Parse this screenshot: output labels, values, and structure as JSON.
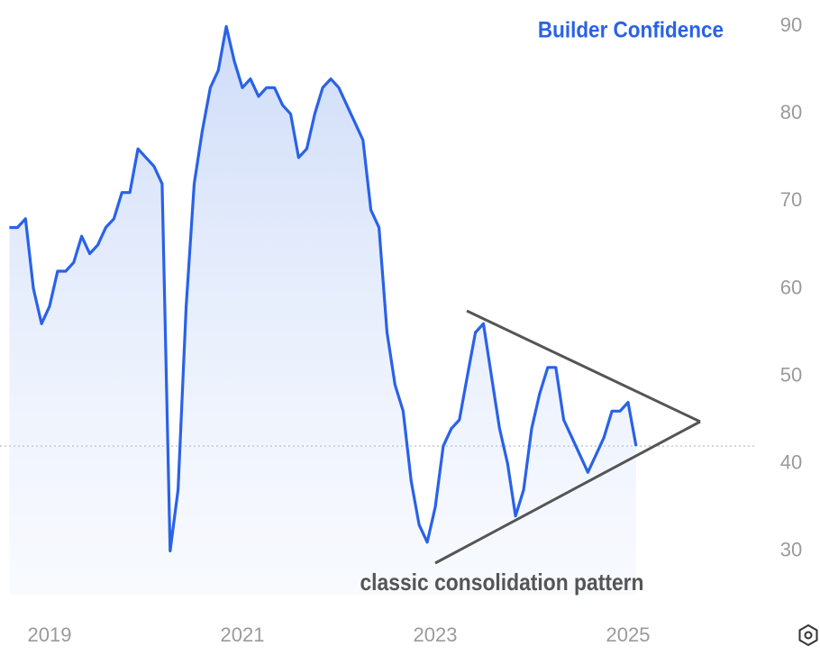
{
  "chart_data": {
    "type": "area",
    "x": [
      2018.583,
      2018.667,
      2018.75,
      2018.833,
      2018.917,
      2019,
      2019.083,
      2019.167,
      2019.25,
      2019.333,
      2019.417,
      2019.5,
      2019.583,
      2019.667,
      2019.75,
      2019.833,
      2019.917,
      2020,
      2020.083,
      2020.167,
      2020.25,
      2020.333,
      2020.417,
      2020.5,
      2020.583,
      2020.667,
      2020.75,
      2020.833,
      2020.917,
      2021,
      2021.083,
      2021.167,
      2021.25,
      2021.333,
      2021.417,
      2021.5,
      2021.583,
      2021.667,
      2021.75,
      2021.833,
      2021.917,
      2022,
      2022.083,
      2022.167,
      2022.25,
      2022.333,
      2022.417,
      2022.5,
      2022.583,
      2022.667,
      2022.75,
      2022.833,
      2022.917,
      2023,
      2023.083,
      2023.167,
      2023.25,
      2023.333,
      2023.417,
      2023.5,
      2023.583,
      2023.667,
      2023.75,
      2023.833,
      2023.917,
      2024,
      2024.083,
      2024.167,
      2024.25,
      2024.333,
      2024.417,
      2024.5,
      2024.583,
      2024.667,
      2024.75,
      2024.833,
      2024.917,
      2025,
      2025.083
    ],
    "series": [
      {
        "name": "Builder Confidence",
        "color": "#2962e8",
        "values": [
          67,
          67,
          68,
          60,
          56,
          58,
          62,
          62,
          63,
          66,
          64,
          65,
          67,
          68,
          71,
          71,
          76,
          75,
          74,
          72,
          30,
          37,
          58,
          72,
          78,
          83,
          85,
          90,
          86,
          83,
          84,
          82,
          83,
          83,
          81,
          80,
          75,
          76,
          80,
          83,
          84,
          83,
          81,
          79,
          77,
          69,
          67,
          55,
          49,
          46,
          38,
          33,
          31,
          35,
          42,
          44,
          45,
          50,
          55,
          56,
          50,
          44,
          40,
          34,
          37,
          44,
          48,
          51,
          51,
          45,
          43,
          41,
          39,
          41,
          43,
          46,
          46,
          47,
          42
        ]
      }
    ],
    "xlim": [
      2018.5,
      2026.5
    ],
    "xticks": [
      2019,
      2021,
      2023,
      2025
    ],
    "ylim": [
      25,
      92
    ],
    "yticks": [
      30,
      40,
      50,
      60,
      70,
      80,
      90
    ],
    "annotations": [
      "classic consolidation pattern"
    ]
  }
}
